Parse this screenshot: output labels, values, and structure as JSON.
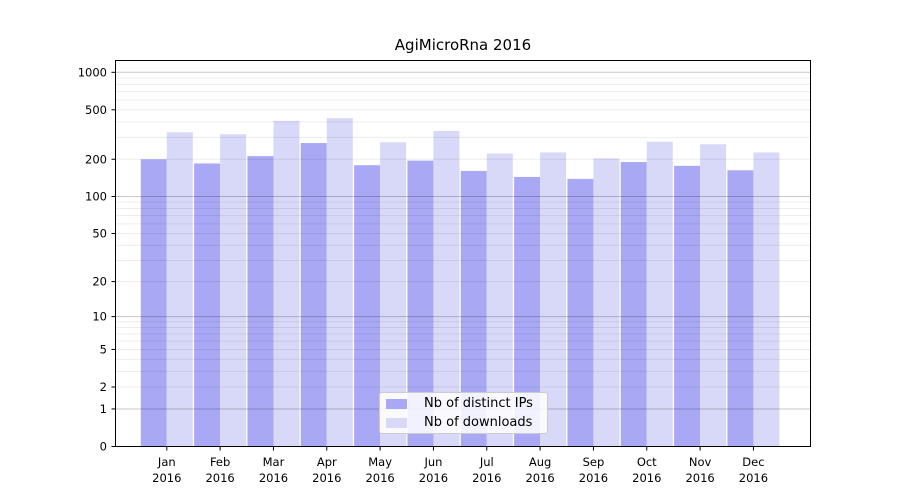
{
  "chart_data": {
    "type": "bar",
    "title": "AgiMicroRna 2016",
    "categories": [
      "Jan",
      "Feb",
      "Mar",
      "Apr",
      "May",
      "Jun",
      "Jul",
      "Aug",
      "Sep",
      "Oct",
      "Nov",
      "Dec"
    ],
    "x_year_label": "2016",
    "series": [
      {
        "name": "Nb of distinct IPs",
        "color": "#a8a8f5",
        "values": [
          200,
          185,
          212,
          270,
          179,
          195,
          161,
          144,
          139,
          190,
          177,
          163
        ]
      },
      {
        "name": "Nb of downloads",
        "color": "#d8d8f8",
        "values": [
          330,
          318,
          407,
          428,
          274,
          338,
          222,
          227,
          203,
          277,
          264,
          227
        ]
      }
    ],
    "yscale": "log1p",
    "ylim": [
      0,
      1233
    ],
    "yticks": [
      0,
      1,
      2,
      5,
      10,
      20,
      50,
      100,
      200,
      500,
      1000
    ],
    "major_gridlines": [
      1,
      10,
      100,
      1000
    ],
    "minor_gridlines": [
      2,
      3,
      4,
      5,
      6,
      7,
      8,
      9,
      20,
      30,
      40,
      50,
      60,
      70,
      80,
      90,
      200,
      300,
      400,
      500,
      600,
      700,
      800,
      900
    ],
    "grid": true,
    "legend_position": "lower center",
    "colors": {
      "axis": "#000000",
      "text": "#000000",
      "major_grid": "rgba(0,0,0,0.22)",
      "minor_grid": "rgba(0,0,0,0.075)",
      "legend_border": "#cccccc"
    }
  }
}
